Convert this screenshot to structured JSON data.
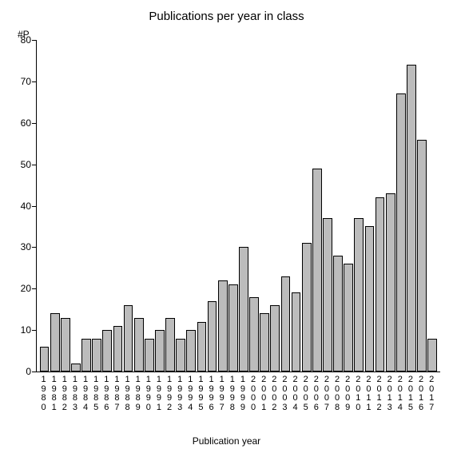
{
  "chart": {
    "type": "bar",
    "title": "Publications per year in class",
    "title_fontsize": 15,
    "y_axis_label": "#P",
    "x_axis_label": "Publication year",
    "label_fontsize": 12,
    "ylim": [
      0,
      80
    ],
    "ytick_step": 10,
    "yticks": [
      0,
      10,
      20,
      30,
      40,
      50,
      60,
      70,
      80
    ],
    "categories": [
      "1980",
      "1981",
      "1982",
      "1983",
      "1984",
      "1985",
      "1986",
      "1987",
      "1988",
      "1989",
      "1990",
      "1991",
      "1992",
      "1993",
      "1994",
      "1995",
      "1996",
      "1997",
      "1998",
      "1999",
      "2000",
      "2001",
      "2002",
      "2003",
      "2004",
      "2005",
      "2006",
      "2007",
      "2008",
      "2009",
      "2010",
      "2011",
      "2012",
      "2013",
      "2014",
      "2015",
      "2016",
      "2017"
    ],
    "values": [
      6,
      14,
      13,
      2,
      8,
      8,
      10,
      11,
      16,
      13,
      8,
      10,
      13,
      8,
      10,
      12,
      17,
      22,
      21,
      30,
      18,
      14,
      16,
      23,
      19,
      31,
      49,
      37,
      28,
      26,
      37,
      35,
      42,
      43,
      67,
      74,
      56,
      8
    ],
    "bar_color": "#bcbcbc",
    "bar_border_color": "#000000",
    "background_color": "#ffffff",
    "axis_color": "#000000",
    "bar_width": 0.9,
    "tick_fontsize": 12,
    "x_tick_fontsize": 11
  }
}
